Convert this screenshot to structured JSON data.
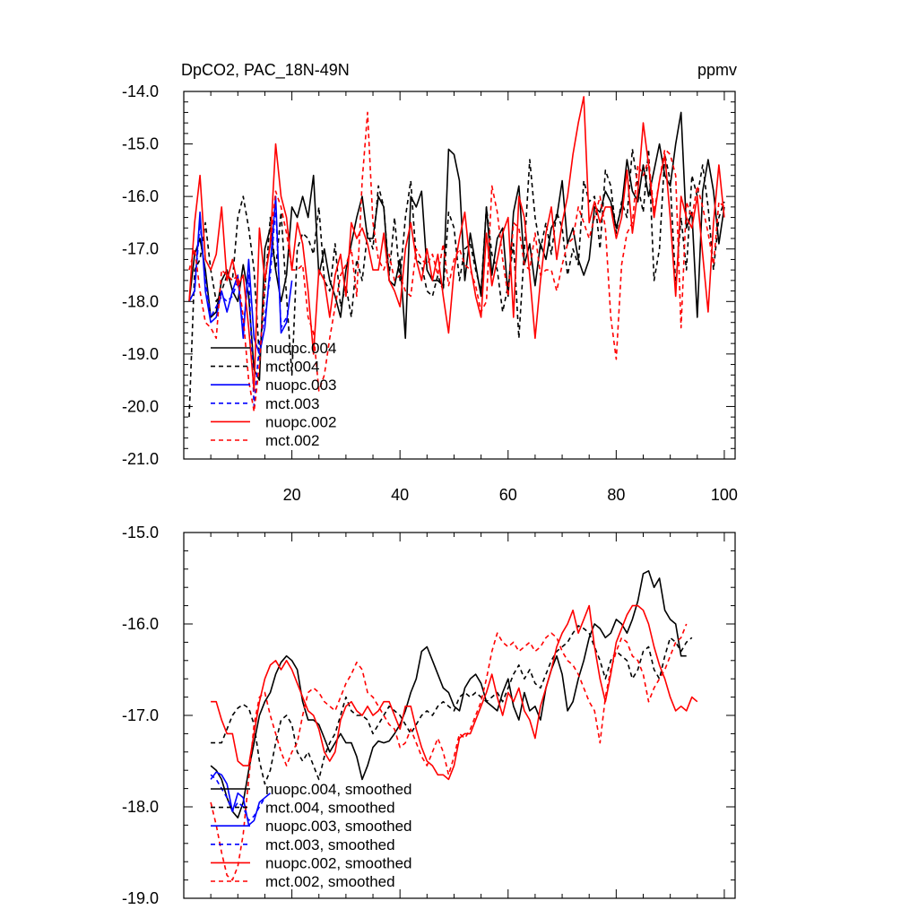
{
  "figure": {
    "title_left": "DpCO2, PAC_18N-49N",
    "title_right": "ppmv"
  },
  "colors": {
    "black": "#000000",
    "blue": "#0000ff",
    "red": "#ff0000"
  },
  "chart_data": [
    {
      "type": "line",
      "title": "DpCO2, PAC_18N-49N",
      "units": "ppmv",
      "xlabel": "",
      "ylabel": "",
      "xlim": [
        0,
        102
      ],
      "ylim": [
        -21.0,
        -14.0
      ],
      "xticks": [
        20,
        40,
        60,
        80,
        100
      ],
      "xtick_labels": [
        "20",
        "40",
        "60",
        "80",
        "100"
      ],
      "yticks": [
        -21.0,
        -20.0,
        -19.0,
        -18.0,
        -17.0,
        -16.0,
        -15.0,
        -14.0
      ],
      "ytick_labels": [
        "-21.0",
        "-20.0",
        "-19.0",
        "-18.0",
        "-17.0",
        "-16.0",
        "-15.0",
        "-14.0"
      ],
      "legend_position": "bottom-left",
      "series": [
        {
          "name": "nuopc.004",
          "color": "#000000",
          "dash": "solid",
          "x_start": 1,
          "values": [
            -18.0,
            -17.1,
            -16.8,
            -17.4,
            -18.3,
            -18.2,
            -17.6,
            -17.4,
            -17.8,
            -18.0,
            -17.3,
            -17.9,
            -19.3,
            -19.5,
            -17.0,
            -16.6,
            -17.4,
            -18.0,
            -17.5,
            -16.2,
            -16.4,
            -16.0,
            -16.4,
            -15.6,
            -17.5,
            -17.0,
            -17.6,
            -17.9,
            -18.3,
            -17.4,
            -16.9,
            -16.4,
            -16.0,
            -16.8,
            -16.8,
            -16.0,
            -16.2,
            -17.6,
            -17.7,
            -17.2,
            -18.7,
            -16.0,
            -16.2,
            -15.9,
            -17.4,
            -17.6,
            -17.6,
            -17.7,
            -15.1,
            -15.2,
            -15.7,
            -17.6,
            -16.7,
            -17.3,
            -17.9,
            -16.2,
            -17.5,
            -16.8,
            -16.6,
            -17.9,
            -16.3,
            -15.8,
            -17.3,
            -16.9,
            -17.7,
            -16.9,
            -17.2,
            -16.6,
            -16.4,
            -15.7,
            -16.9,
            -16.6,
            -17.2,
            -17.5,
            -17.2,
            -16.2,
            -16.3,
            -15.9,
            -16.1,
            -16.6,
            -16.2,
            -15.3,
            -15.9,
            -16.1,
            -15.4,
            -16.0,
            -15.5,
            -15.0,
            -15.6,
            -15.8,
            -15.0,
            -14.4,
            -16.6,
            -16.3,
            -18.3,
            -15.9,
            -15.3,
            -15.9,
            -16.9,
            -16.2
          ]
        },
        {
          "name": "mct.004",
          "color": "#000000",
          "dash": "dashed",
          "x_start": 1,
          "values": [
            -20.2,
            -17.4,
            -17.2,
            -16.5,
            -17.4,
            -18.0,
            -17.8,
            -17.5,
            -17.6,
            -16.4,
            -16.0,
            -16.6,
            -17.4,
            -19.1,
            -17.8,
            -16.4,
            -17.4,
            -16.3,
            -17.9,
            -19.4,
            -17.0,
            -16.7,
            -16.8,
            -17.1,
            -16.2,
            -17.6,
            -17.8,
            -16.9,
            -18.1,
            -17.7,
            -18.3,
            -17.2,
            -17.6,
            -16.7,
            -17.0,
            -15.8,
            -16.2,
            -17.5,
            -16.4,
            -17.6,
            -16.4,
            -15.7,
            -17.2,
            -17.3,
            -17.8,
            -17.9,
            -17.5,
            -17.8,
            -16.3,
            -16.6,
            -17.6,
            -17.0,
            -16.9,
            -17.4,
            -17.8,
            -16.2,
            -17.1,
            -17.4,
            -18.2,
            -17.7,
            -16.9,
            -18.7,
            -17.0,
            -15.3,
            -16.4,
            -17.0,
            -16.5,
            -17.1,
            -16.3,
            -16.6,
            -17.5,
            -17.0,
            -17.3,
            -15.7,
            -16.1,
            -16.0,
            -17.0,
            -15.5,
            -15.8,
            -16.7,
            -16.1,
            -16.4,
            -15.1,
            -15.8,
            -16.3,
            -15.1,
            -17.6,
            -17.0,
            -15.2,
            -15.7,
            -17.7,
            -16.4,
            -17.4,
            -15.6,
            -16.0,
            -15.4,
            -16.2,
            -17.4,
            -16.4,
            -16.1
          ]
        },
        {
          "name": "nuopc.003",
          "color": "#0000ff",
          "dash": "solid",
          "x_start": 1,
          "values": [
            -18.0,
            -17.8,
            -16.3,
            -17.8,
            -18.4,
            -18.3,
            -17.8,
            -18.2,
            -17.8,
            -17.5,
            -18.7,
            -17.2,
            -18.7,
            -19.0,
            -18.5,
            -17.3,
            -16.0,
            -18.6,
            -18.4,
            -17.6
          ]
        },
        {
          "name": "mct.003",
          "color": "#0000ff",
          "dash": "dashed",
          "x_start": 1,
          "values": [
            -18.0,
            -17.8,
            -16.5,
            -17.6,
            -18.3,
            -18.1,
            -17.9,
            -18.0,
            -17.9,
            -17.6,
            -18.5,
            -17.5,
            -20.0,
            -18.8,
            -18.3,
            -17.5,
            -16.2,
            -18.5,
            -18.3
          ]
        },
        {
          "name": "nuopc.002",
          "color": "#ff0000",
          "dash": "solid",
          "x_start": 1,
          "values": [
            -18.0,
            -16.5,
            -15.6,
            -17.2,
            -17.4,
            -17.1,
            -16.2,
            -17.6,
            -17.2,
            -17.7,
            -17.5,
            -18.5,
            -19.7,
            -16.6,
            -17.6,
            -16.9,
            -15.0,
            -16.0,
            -16.4,
            -17.4,
            -16.5,
            -16.9,
            -17.8,
            -19.0,
            -17.4,
            -17.6,
            -18.3,
            -17.5,
            -17.1,
            -17.9,
            -16.5,
            -16.8,
            -16.6,
            -16.9,
            -17.4,
            -17.4,
            -16.7,
            -17.6,
            -17.8,
            -18.1,
            -17.0,
            -16.5,
            -17.2,
            -17.6,
            -17.0,
            -17.6,
            -17.1,
            -17.9,
            -18.6,
            -17.4,
            -16.8,
            -16.3,
            -17.3,
            -17.9,
            -18.3,
            -16.7,
            -17.7,
            -17.2,
            -16.7,
            -16.4,
            -18.3,
            -16.0,
            -16.4,
            -17.5,
            -18.7,
            -17.6,
            -16.7,
            -16.2,
            -17.2,
            -16.5,
            -16.0,
            -15.2,
            -14.6,
            -14.1,
            -16.5,
            -16.1,
            -16.5,
            -16.2,
            -16.2,
            -16.8,
            -16.4,
            -15.5,
            -16.7,
            -15.9,
            -14.6,
            -15.4,
            -16.4,
            -15.7,
            -15.2,
            -16.4,
            -17.9,
            -16.0,
            -16.4,
            -16.6,
            -16.0,
            -17.1,
            -18.2,
            -16.5,
            -15.4,
            -16.4
          ]
        },
        {
          "name": "mct.002",
          "color": "#ff0000",
          "dash": "dashed",
          "x_start": 1,
          "values": [
            -17.4,
            -17.0,
            -17.8,
            -18.4,
            -18.5,
            -18.7,
            -17.4,
            -17.5,
            -17.6,
            -17.5,
            -18.3,
            -19.5,
            -20.1,
            -19.2,
            -17.6,
            -16.9,
            -15.9,
            -16.2,
            -16.7,
            -17.4,
            -17.4,
            -17.3,
            -18.3,
            -18.6,
            -19.7,
            -19.4,
            -18.7,
            -18.1,
            -17.5,
            -17.3,
            -17.0,
            -17.9,
            -15.7,
            -14.4,
            -16.5,
            -17.2,
            -17.4,
            -17.1,
            -17.6,
            -17.5,
            -17.8,
            -17.9,
            -17.0,
            -17.2,
            -17.3,
            -17.1,
            -17.5,
            -16.9,
            -17.7,
            -17.2,
            -17.0,
            -17.3,
            -17.4,
            -17.7,
            -18.2,
            -18.0,
            -15.8,
            -16.3,
            -17.2,
            -17.9,
            -16.5,
            -16.6,
            -17.3,
            -17.4,
            -16.7,
            -17.5,
            -17.4,
            -17.4,
            -17.8,
            -17.3,
            -16.9,
            -16.8,
            -16.2,
            -16.5,
            -16.8,
            -16.4,
            -16.0,
            -16.6,
            -18.3,
            -19.1,
            -17.3,
            -16.7,
            -16.5,
            -15.4,
            -15.6,
            -15.3,
            -16.3,
            -15.7,
            -15.1,
            -15.2,
            -15.6,
            -18.5,
            -16.1,
            -16.4,
            -15.8,
            -16.2,
            -16.7,
            -17.3,
            -16.1,
            -16.2
          ]
        }
      ]
    },
    {
      "type": "line",
      "title": "",
      "xlabel": "",
      "ylabel": "",
      "xlim": [
        0,
        102
      ],
      "ylim": [
        -19.0,
        -15.0
      ],
      "xticks": [
        20,
        40,
        60,
        80,
        100
      ],
      "xtick_labels": [],
      "yticks": [
        -19.0,
        -18.0,
        -17.0,
        -16.0,
        -15.0
      ],
      "ytick_labels": [
        "-19.0",
        "-18.0",
        "-17.0",
        "-16.0",
        "-15.0"
      ],
      "legend_position": "bottom-left",
      "series": [
        {
          "name": "nuopc.004, smoothed",
          "color": "#000000",
          "dash": "solid",
          "x_start": 5,
          "values": [
            -17.55,
            -17.6,
            -17.7,
            -17.9,
            -18.05,
            -18.12,
            -17.95,
            -17.6,
            -17.3,
            -17.0,
            -16.85,
            -16.75,
            -16.55,
            -16.42,
            -16.35,
            -16.4,
            -16.5,
            -16.85,
            -17.05,
            -17.05,
            -17.1,
            -17.25,
            -17.4,
            -17.3,
            -17.2,
            -17.3,
            -17.3,
            -17.45,
            -17.7,
            -17.55,
            -17.35,
            -17.28,
            -17.3,
            -17.28,
            -17.2,
            -17.1,
            -16.95,
            -16.75,
            -16.6,
            -16.3,
            -16.25,
            -16.4,
            -16.55,
            -16.7,
            -16.75,
            -16.9,
            -16.95,
            -16.7,
            -16.6,
            -16.55,
            -16.65,
            -16.85,
            -16.9,
            -16.95,
            -16.75,
            -16.6,
            -16.9,
            -17.05,
            -16.75,
            -16.95,
            -16.9,
            -17.05,
            -16.7,
            -16.5,
            -16.35,
            -16.55,
            -16.95,
            -16.85,
            -16.6,
            -16.4,
            -16.15,
            -16.0,
            -16.05,
            -16.15,
            -16.1,
            -15.95,
            -16.0,
            -16.1,
            -15.95,
            -15.75,
            -15.45,
            -15.42,
            -15.6,
            -15.5,
            -15.85,
            -15.95,
            -16.0,
            -16.35,
            -16.35
          ]
        },
        {
          "name": "mct.004, smoothed",
          "color": "#000000",
          "dash": "dashed",
          "x_start": 5,
          "values": [
            -17.3,
            -17.3,
            -17.3,
            -17.15,
            -17.0,
            -16.92,
            -16.88,
            -16.92,
            -17.1,
            -17.5,
            -17.75,
            -17.6,
            -17.3,
            -17.05,
            -17.0,
            -17.1,
            -17.4,
            -17.5,
            -17.4,
            -17.55,
            -17.7,
            -17.45,
            -17.3,
            -17.2,
            -17.0,
            -16.8,
            -16.95,
            -17.0,
            -17.0,
            -17.05,
            -17.2,
            -17.1,
            -17.0,
            -16.9,
            -16.95,
            -17.0,
            -17.1,
            -17.2,
            -17.1,
            -17.0,
            -16.95,
            -17.0,
            -16.9,
            -16.85,
            -16.9,
            -16.95,
            -16.8,
            -16.75,
            -16.8,
            -16.75,
            -16.8,
            -16.85,
            -16.8,
            -16.75,
            -16.85,
            -16.7,
            -16.55,
            -16.45,
            -16.6,
            -16.5,
            -16.65,
            -16.7,
            -16.55,
            -16.4,
            -16.3,
            -16.25,
            -16.2,
            -16.1,
            -16.02,
            -16.05,
            -16.1,
            -16.25,
            -16.4,
            -16.6,
            -16.4,
            -16.3,
            -16.35,
            -16.4,
            -16.6,
            -16.5,
            -16.3,
            -16.25,
            -16.5,
            -16.6,
            -16.35,
            -16.15,
            -16.2,
            -16.3,
            -16.2,
            -16.15
          ]
        },
        {
          "name": "nuopc.003, smoothed",
          "color": "#0000ff",
          "dash": "solid",
          "x_start": 5,
          "values": [
            -17.7,
            -17.62,
            -17.65,
            -17.75,
            -18.05,
            -17.85,
            -17.9,
            -18.2,
            -18.15,
            -17.95,
            -17.9,
            -17.85
          ]
        },
        {
          "name": "mct.003, smoothed",
          "color": "#0000ff",
          "dash": "dashed",
          "x_start": 5,
          "values": [
            -17.65,
            -17.7,
            -17.8,
            -17.9,
            -18.05,
            -17.95,
            -18.0,
            -18.15,
            -18.1,
            -18.0,
            -17.9
          ]
        },
        {
          "name": "nuopc.002, smoothed",
          "color": "#ff0000",
          "dash": "solid",
          "x_start": 5,
          "values": [
            -16.85,
            -16.85,
            -17.05,
            -17.2,
            -17.2,
            -17.5,
            -17.55,
            -17.55,
            -17.2,
            -16.85,
            -16.6,
            -16.45,
            -16.4,
            -16.5,
            -16.4,
            -16.5,
            -16.65,
            -16.8,
            -16.95,
            -17.0,
            -17.15,
            -17.4,
            -17.5,
            -17.4,
            -17.05,
            -16.9,
            -16.85,
            -16.95,
            -17.0,
            -16.9,
            -17.0,
            -16.95,
            -16.85,
            -16.85,
            -17.0,
            -17.15,
            -16.9,
            -16.9,
            -17.15,
            -17.35,
            -17.5,
            -17.55,
            -17.65,
            -17.65,
            -17.7,
            -17.55,
            -17.25,
            -17.2,
            -17.2,
            -17.05,
            -16.9,
            -16.75,
            -16.55,
            -16.8,
            -17.0,
            -16.75,
            -16.85,
            -16.7,
            -16.95,
            -17.05,
            -17.25,
            -16.9,
            -16.7,
            -16.5,
            -16.25,
            -16.1,
            -16.0,
            -15.85,
            -16.1,
            -15.95,
            -15.8,
            -16.25,
            -16.6,
            -16.85,
            -16.55,
            -16.2,
            -16.05,
            -15.9,
            -15.8,
            -15.8,
            -15.85,
            -16.0,
            -16.25,
            -16.45,
            -16.6,
            -16.8,
            -16.95,
            -16.9,
            -16.95,
            -16.8,
            -16.85
          ]
        },
        {
          "name": "mct.002, smoothed",
          "color": "#ff0000",
          "dash": "dashed",
          "x_start": 5,
          "values": [
            -17.95,
            -18.2,
            -18.5,
            -18.75,
            -18.8,
            -18.65,
            -18.3,
            -17.7,
            -17.1,
            -16.8,
            -16.75,
            -17.0,
            -17.2,
            -17.4,
            -17.55,
            -17.4,
            -17.3,
            -17.0,
            -16.75,
            -16.7,
            -16.75,
            -16.85,
            -16.9,
            -16.95,
            -16.8,
            -16.65,
            -16.55,
            -16.42,
            -16.5,
            -16.75,
            -16.8,
            -16.9,
            -17.0,
            -17.1,
            -17.15,
            -17.35,
            -17.3,
            -17.15,
            -17.3,
            -17.45,
            -17.55,
            -17.4,
            -17.25,
            -17.4,
            -17.65,
            -17.45,
            -17.2,
            -17.25,
            -17.15,
            -17.0,
            -16.85,
            -16.6,
            -16.3,
            -16.1,
            -16.2,
            -16.25,
            -16.2,
            -16.3,
            -16.25,
            -16.2,
            -16.3,
            -16.25,
            -16.15,
            -16.1,
            -16.15,
            -16.3,
            -16.4,
            -16.45,
            -16.55,
            -16.7,
            -16.85,
            -16.95,
            -17.3,
            -16.8,
            -16.5,
            -16.3,
            -16.15,
            -16.2,
            -16.35,
            -16.4,
            -16.55,
            -16.85,
            -16.7,
            -16.6,
            -16.5,
            -16.35,
            -16.2,
            -16.15,
            -16.0
          ]
        }
      ]
    }
  ]
}
